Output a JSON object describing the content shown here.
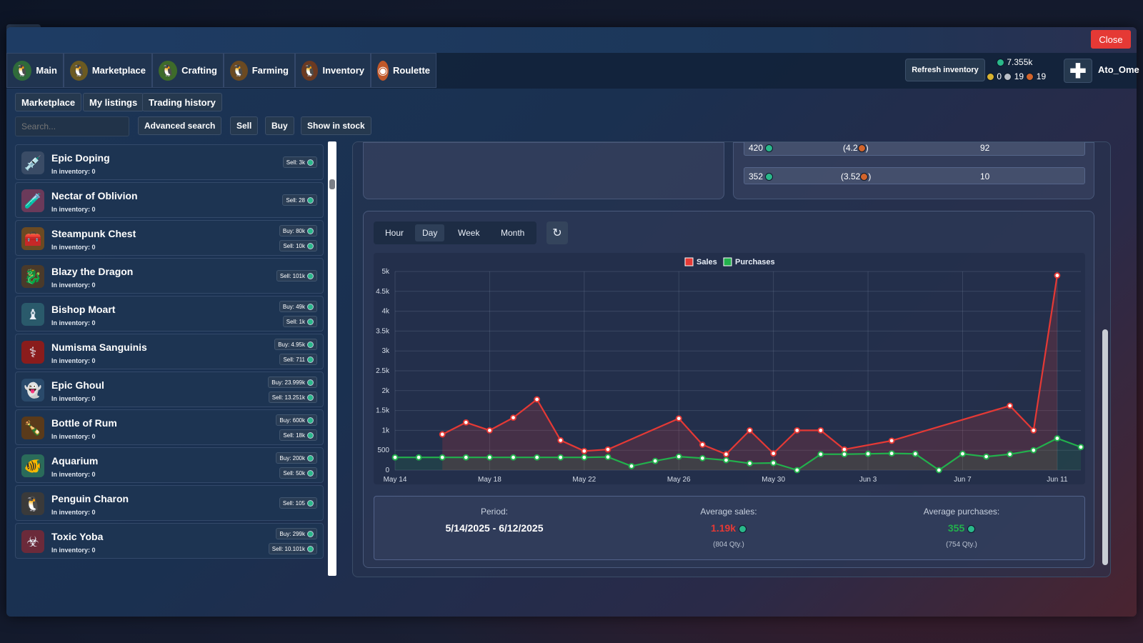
{
  "window": {
    "close_label": "Close"
  },
  "nav": {
    "tabs": [
      {
        "label": "Main",
        "icon": "penguin-icon"
      },
      {
        "label": "Marketplace",
        "icon": "penguin-coin-icon"
      },
      {
        "label": "Crafting",
        "icon": "penguin-hammer-icon"
      },
      {
        "label": "Farming",
        "icon": "penguin-farm-icon"
      },
      {
        "label": "Inventory",
        "icon": "penguin-bag-icon"
      },
      {
        "label": "Roulette",
        "icon": "roulette-icon"
      }
    ],
    "refresh_label": "Refresh inventory",
    "balance": "7.355k",
    "gold": "0",
    "silver": "19",
    "bronze": "19",
    "username": "Ato_Ome"
  },
  "subtabs": [
    "Marketplace",
    "My listings",
    "Trading history"
  ],
  "toolbar": {
    "search_placeholder": "Search...",
    "advanced_label": "Advanced search",
    "sell_label": "Sell",
    "buy_label": "Buy",
    "stock_label": "Show in stock"
  },
  "items": [
    {
      "name": "Epic Doping",
      "inventory": "In inventory: 0",
      "buy": "",
      "sell": "Sell: 3k",
      "icon": "syringe-icon"
    },
    {
      "name": "Nectar of Oblivion",
      "inventory": "In inventory: 0",
      "buy": "",
      "sell": "Sell: 28",
      "icon": "potion-icon"
    },
    {
      "name": "Steampunk Chest",
      "inventory": "In inventory: 0",
      "buy": "Buy: 80k",
      "sell": "Sell: 10k",
      "icon": "chest-icon"
    },
    {
      "name": "Blazy the Dragon",
      "inventory": "In inventory: 0",
      "buy": "",
      "sell": "Sell: 101k",
      "icon": "dragon-icon"
    },
    {
      "name": "Bishop Moart",
      "inventory": "In inventory: 0",
      "buy": "Buy: 49k",
      "sell": "Sell: 1k",
      "icon": "bishop-icon"
    },
    {
      "name": "Numisma Sanguinis",
      "inventory": "In inventory: 0",
      "buy": "Buy: 4.95k",
      "sell": "Sell: 711",
      "icon": "blood-coin-icon"
    },
    {
      "name": "Epic Ghoul",
      "inventory": "In inventory: 0",
      "buy": "Buy: 23.999k",
      "sell": "Sell: 13.251k",
      "icon": "ghoul-icon"
    },
    {
      "name": "Bottle of Rum",
      "inventory": "In inventory: 0",
      "buy": "Buy: 600k",
      "sell": "Sell: 18k",
      "icon": "bottle-icon"
    },
    {
      "name": "Aquarium",
      "inventory": "In inventory: 0",
      "buy": "Buy: 200k",
      "sell": "Sell: 50k",
      "icon": "aquarium-icon"
    },
    {
      "name": "Penguin Charon",
      "inventory": "In inventory: 0",
      "buy": "",
      "sell": "Sell: 105",
      "icon": "hooded-penguin-icon"
    },
    {
      "name": "Toxic Yoba",
      "inventory": "In inventory: 0",
      "buy": "Buy: 299k",
      "sell": "Sell: 10.101k",
      "icon": "toxic-icon"
    }
  ],
  "orders": [
    {
      "price": "420",
      "unit": "(4.2",
      "qty": "92"
    },
    {
      "price": "352",
      "unit": "(3.52",
      "qty": "10"
    }
  ],
  "range_tabs": [
    "Hour",
    "Day",
    "Week",
    "Month"
  ],
  "active_range": "Day",
  "reload_icon": "↻",
  "stats": {
    "period_label": "Period:",
    "period_value": "5/14/2025 - 6/12/2025",
    "avg_sales_label": "Average sales:",
    "avg_sales_value": "1.19k",
    "avg_sales_qty": "(804 Qty.)",
    "avg_purchases_label": "Average purchases:",
    "avg_purchases_value": "355",
    "avg_purchases_qty": "(754 Qty.)"
  },
  "colors": {
    "sales": "#e53935",
    "purchases": "#22b14c",
    "accent": "#2ab88a"
  },
  "chart_data": {
    "type": "line",
    "legend": [
      "Sales",
      "Purchases"
    ],
    "x_tick_labels": [
      "May 14",
      "May 18",
      "May 22",
      "May 26",
      "May 30",
      "Jun 3",
      "Jun 7",
      "Jun 11"
    ],
    "y_tick_labels": [
      "0",
      "500",
      "1k",
      "1.5k",
      "2k",
      "2.5k",
      "3k",
      "3.5k",
      "4k",
      "4.5k",
      "5k"
    ],
    "ylim": [
      0,
      5000
    ],
    "grid": true,
    "legend_position": "top-center",
    "series": [
      {
        "name": "Sales",
        "points": [
          [
            16,
            900
          ],
          [
            17,
            1200
          ],
          [
            18,
            1000
          ],
          [
            19,
            1320
          ],
          [
            20,
            1780
          ],
          [
            21,
            750
          ],
          [
            22,
            480
          ],
          [
            23,
            520
          ],
          [
            26,
            1300
          ],
          [
            27,
            640
          ],
          [
            28,
            400
          ],
          [
            29,
            1000
          ],
          [
            30,
            420
          ],
          [
            31,
            1000
          ],
          [
            32,
            1000
          ],
          [
            33,
            520
          ],
          [
            35,
            740
          ],
          [
            40,
            1620
          ],
          [
            41,
            1000
          ],
          [
            42,
            4900
          ]
        ]
      },
      {
        "name": "Purchases",
        "points": [
          [
            14,
            320
          ],
          [
            15,
            320
          ],
          [
            16,
            320
          ],
          [
            17,
            320
          ],
          [
            18,
            320
          ],
          [
            19,
            320
          ],
          [
            20,
            320
          ],
          [
            21,
            320
          ],
          [
            22,
            320
          ],
          [
            23,
            330
          ],
          [
            24,
            100
          ],
          [
            25,
            230
          ],
          [
            26,
            340
          ],
          [
            27,
            300
          ],
          [
            28,
            250
          ],
          [
            29,
            170
          ],
          [
            30,
            180
          ],
          [
            31,
            0
          ],
          [
            32,
            400
          ],
          [
            33,
            400
          ],
          [
            34,
            410
          ],
          [
            35,
            420
          ],
          [
            36,
            410
          ],
          [
            37,
            0
          ],
          [
            38,
            410
          ],
          [
            39,
            340
          ],
          [
            40,
            400
          ],
          [
            41,
            500
          ],
          [
            42,
            800
          ],
          [
            43,
            580
          ]
        ]
      }
    ]
  }
}
